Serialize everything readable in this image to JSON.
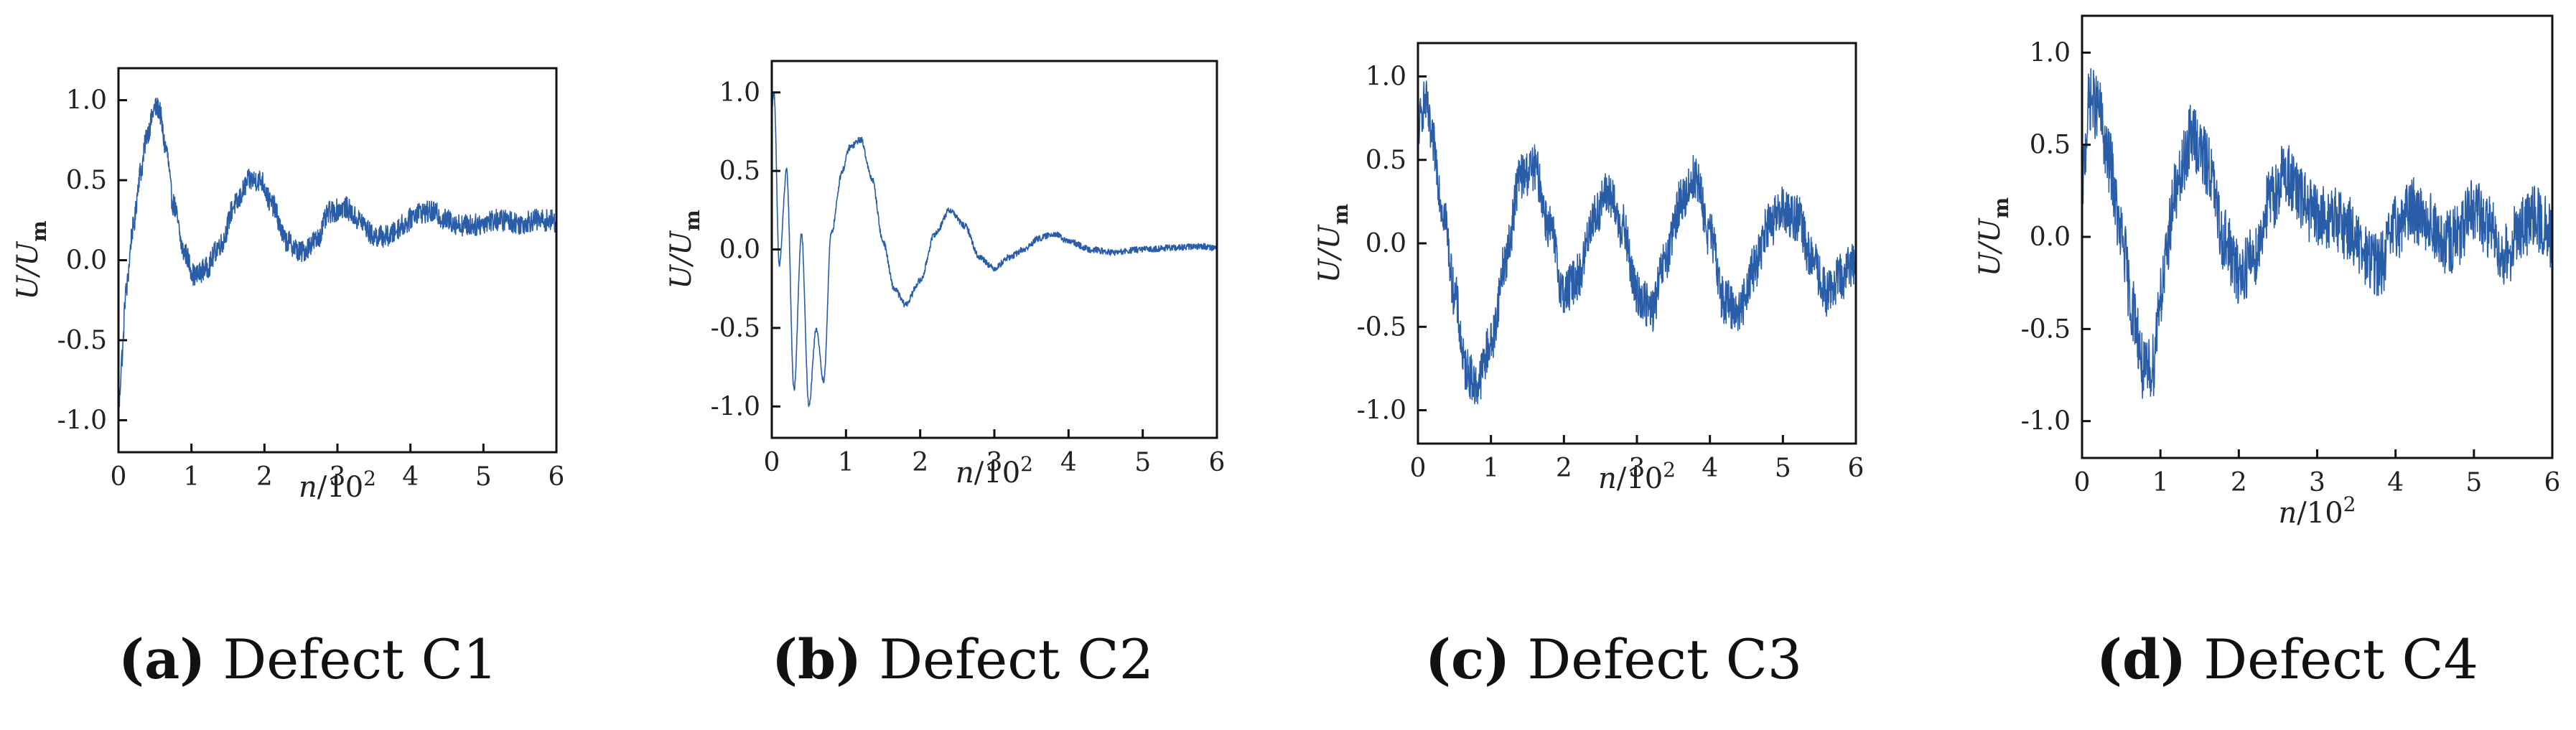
{
  "chart_data": [
    {
      "type": "line",
      "panel": "a",
      "caption_letter": "(a)",
      "caption_text": " Defect C1",
      "xlabel_var": "n",
      "xlabel_unit": "/10",
      "xlabel_exp": "2",
      "ylabel_var": "U/U",
      "ylabel_sub": "m",
      "xlim": [
        0,
        6
      ],
      "ylim": [
        -1.2,
        1.2
      ],
      "xticks": [
        0,
        1,
        2,
        3,
        4,
        5,
        6
      ],
      "xtick_labels": [
        "0",
        "1",
        "2",
        "3",
        "4",
        "5",
        "6"
      ],
      "yticks": [
        -1.0,
        -0.5,
        0.0,
        0.5,
        1.0
      ],
      "ytick_labels": [
        "-1.0",
        "-0.5",
        "0.0",
        "0.5",
        "1.0"
      ],
      "series": [
        {
          "name": "U/Um",
          "x": [
            0,
            0.05,
            0.1,
            0.2,
            0.3,
            0.4,
            0.5,
            0.55,
            0.65,
            0.75,
            0.9,
            1.05,
            1.2,
            1.4,
            1.6,
            1.8,
            1.95,
            2.1,
            2.3,
            2.5,
            2.7,
            2.9,
            3.1,
            3.3,
            3.5,
            3.7,
            3.9,
            4.1,
            4.3,
            4.5,
            4.7,
            4.9,
            5.1,
            5.3,
            5.5,
            5.7,
            5.9,
            6.0
          ],
          "y": [
            -0.95,
            -0.6,
            -0.2,
            0.2,
            0.55,
            0.8,
            0.95,
            0.95,
            0.7,
            0.35,
            0.05,
            -0.1,
            -0.05,
            0.1,
            0.35,
            0.5,
            0.5,
            0.35,
            0.12,
            0.05,
            0.12,
            0.3,
            0.33,
            0.25,
            0.15,
            0.15,
            0.22,
            0.3,
            0.3,
            0.25,
            0.22,
            0.22,
            0.25,
            0.25,
            0.23,
            0.25,
            0.25,
            0.24
          ],
          "noise": 0.07
        }
      ]
    },
    {
      "type": "line",
      "panel": "b",
      "caption_letter": "(b)",
      "caption_text": " Defect C2",
      "xlabel_var": "n",
      "xlabel_unit": "/10",
      "xlabel_exp": "2",
      "ylabel_var": "U/U",
      "ylabel_sub": "m",
      "xlim": [
        0,
        6
      ],
      "ylim": [
        -1.2,
        1.2
      ],
      "xticks": [
        0,
        1,
        2,
        3,
        4,
        5,
        6
      ],
      "xtick_labels": [
        "0",
        "1",
        "2",
        "3",
        "4",
        "5",
        "6"
      ],
      "yticks": [
        -1.0,
        -0.5,
        0.0,
        0.5,
        1.0
      ],
      "ytick_labels": [
        "-1.0",
        "-0.5",
        "0.0",
        "0.5",
        "1.0"
      ],
      "series": [
        {
          "name": "U/Um",
          "x": [
            0,
            0.03,
            0.1,
            0.2,
            0.3,
            0.4,
            0.5,
            0.6,
            0.7,
            0.8,
            0.95,
            1.05,
            1.2,
            1.35,
            1.5,
            1.65,
            1.8,
            2.0,
            2.2,
            2.4,
            2.6,
            2.8,
            3.0,
            3.2,
            3.4,
            3.6,
            3.8,
            4.0,
            4.3,
            4.6,
            5.0,
            5.4,
            5.8,
            6.0
          ],
          "y": [
            0.9,
            1.0,
            -0.1,
            0.5,
            -0.9,
            0.1,
            -1.0,
            -0.5,
            -0.85,
            0.1,
            0.5,
            0.65,
            0.7,
            0.45,
            0.05,
            -0.25,
            -0.35,
            -0.2,
            0.1,
            0.25,
            0.15,
            -0.05,
            -0.12,
            -0.05,
            0.0,
            0.07,
            0.1,
            0.05,
            0.0,
            -0.02,
            0.0,
            0.01,
            0.02,
            0.01
          ],
          "noise": 0.02
        }
      ]
    },
    {
      "type": "line",
      "panel": "c",
      "caption_letter": "(c)",
      "caption_text": " Defect C3",
      "xlabel_var": "n",
      "xlabel_unit": "/10",
      "xlabel_exp": "2",
      "ylabel_var": "U/U",
      "ylabel_sub": "m",
      "xlim": [
        0,
        6
      ],
      "ylim": [
        -1.2,
        1.2
      ],
      "xticks": [
        0,
        1,
        2,
        3,
        4,
        5,
        6
      ],
      "xtick_labels": [
        "0",
        "1",
        "2",
        "3",
        "4",
        "5",
        "6"
      ],
      "yticks": [
        -1.0,
        -0.5,
        0.0,
        0.5,
        1.0
      ],
      "ytick_labels": [
        "-1.0",
        "-0.5",
        "0.0",
        "0.5",
        "1.0"
      ],
      "series": [
        {
          "name": "U/Um",
          "x": [
            0,
            0.1,
            0.2,
            0.35,
            0.5,
            0.65,
            0.8,
            1.0,
            1.2,
            1.4,
            1.6,
            1.8,
            2.0,
            2.2,
            2.4,
            2.6,
            2.8,
            3.0,
            3.2,
            3.4,
            3.6,
            3.8,
            4.0,
            4.2,
            4.4,
            4.6,
            4.8,
            5.0,
            5.2,
            5.4,
            5.6,
            5.8,
            6.0
          ],
          "y": [
            0.7,
            0.85,
            0.6,
            0.2,
            -0.3,
            -0.75,
            -0.85,
            -0.6,
            -0.1,
            0.4,
            0.45,
            0.1,
            -0.3,
            -0.2,
            0.15,
            0.3,
            0.1,
            -0.3,
            -0.4,
            -0.1,
            0.25,
            0.4,
            0.05,
            -0.35,
            -0.4,
            -0.15,
            0.1,
            0.2,
            0.15,
            -0.1,
            -0.3,
            -0.2,
            -0.1
          ],
          "noise": 0.14
        }
      ]
    },
    {
      "type": "line",
      "panel": "d",
      "caption_letter": "(d)",
      "caption_text": " Defect C4",
      "xlabel_var": "n",
      "xlabel_unit": "/10",
      "xlabel_exp": "2",
      "ylabel_var": "U/U",
      "ylabel_sub": "m",
      "xlim": [
        0,
        6
      ],
      "ylim": [
        -1.2,
        1.2
      ],
      "xticks": [
        0,
        1,
        2,
        3,
        4,
        5,
        6
      ],
      "xtick_labels": [
        "0",
        "1",
        "2",
        "3",
        "4",
        "5",
        "6"
      ],
      "yticks": [
        -1.0,
        -0.5,
        0.0,
        0.5,
        1.0
      ],
      "ytick_labels": [
        "-1.0",
        "-0.5",
        "0.0",
        "0.5",
        "1.0"
      ],
      "series": [
        {
          "name": "U/Um",
          "x": [
            0,
            0.1,
            0.2,
            0.35,
            0.5,
            0.65,
            0.8,
            0.9,
            1.0,
            1.2,
            1.4,
            1.6,
            1.8,
            2.0,
            2.2,
            2.4,
            2.6,
            2.8,
            3.0,
            3.2,
            3.4,
            3.6,
            3.8,
            4.0,
            4.2,
            4.4,
            4.6,
            4.8,
            5.0,
            5.2,
            5.4,
            5.6,
            5.8,
            6.0
          ],
          "y": [
            0.3,
            0.75,
            0.7,
            0.4,
            0.0,
            -0.4,
            -0.75,
            -0.7,
            -0.3,
            0.25,
            0.55,
            0.4,
            0.0,
            -0.2,
            -0.1,
            0.2,
            0.35,
            0.2,
            0.1,
            0.1,
            0.05,
            -0.1,
            -0.15,
            0.05,
            0.15,
            0.1,
            -0.05,
            0.0,
            0.15,
            0.05,
            -0.1,
            0.05,
            0.1,
            0.0
          ],
          "noise": 0.18
        }
      ]
    }
  ]
}
